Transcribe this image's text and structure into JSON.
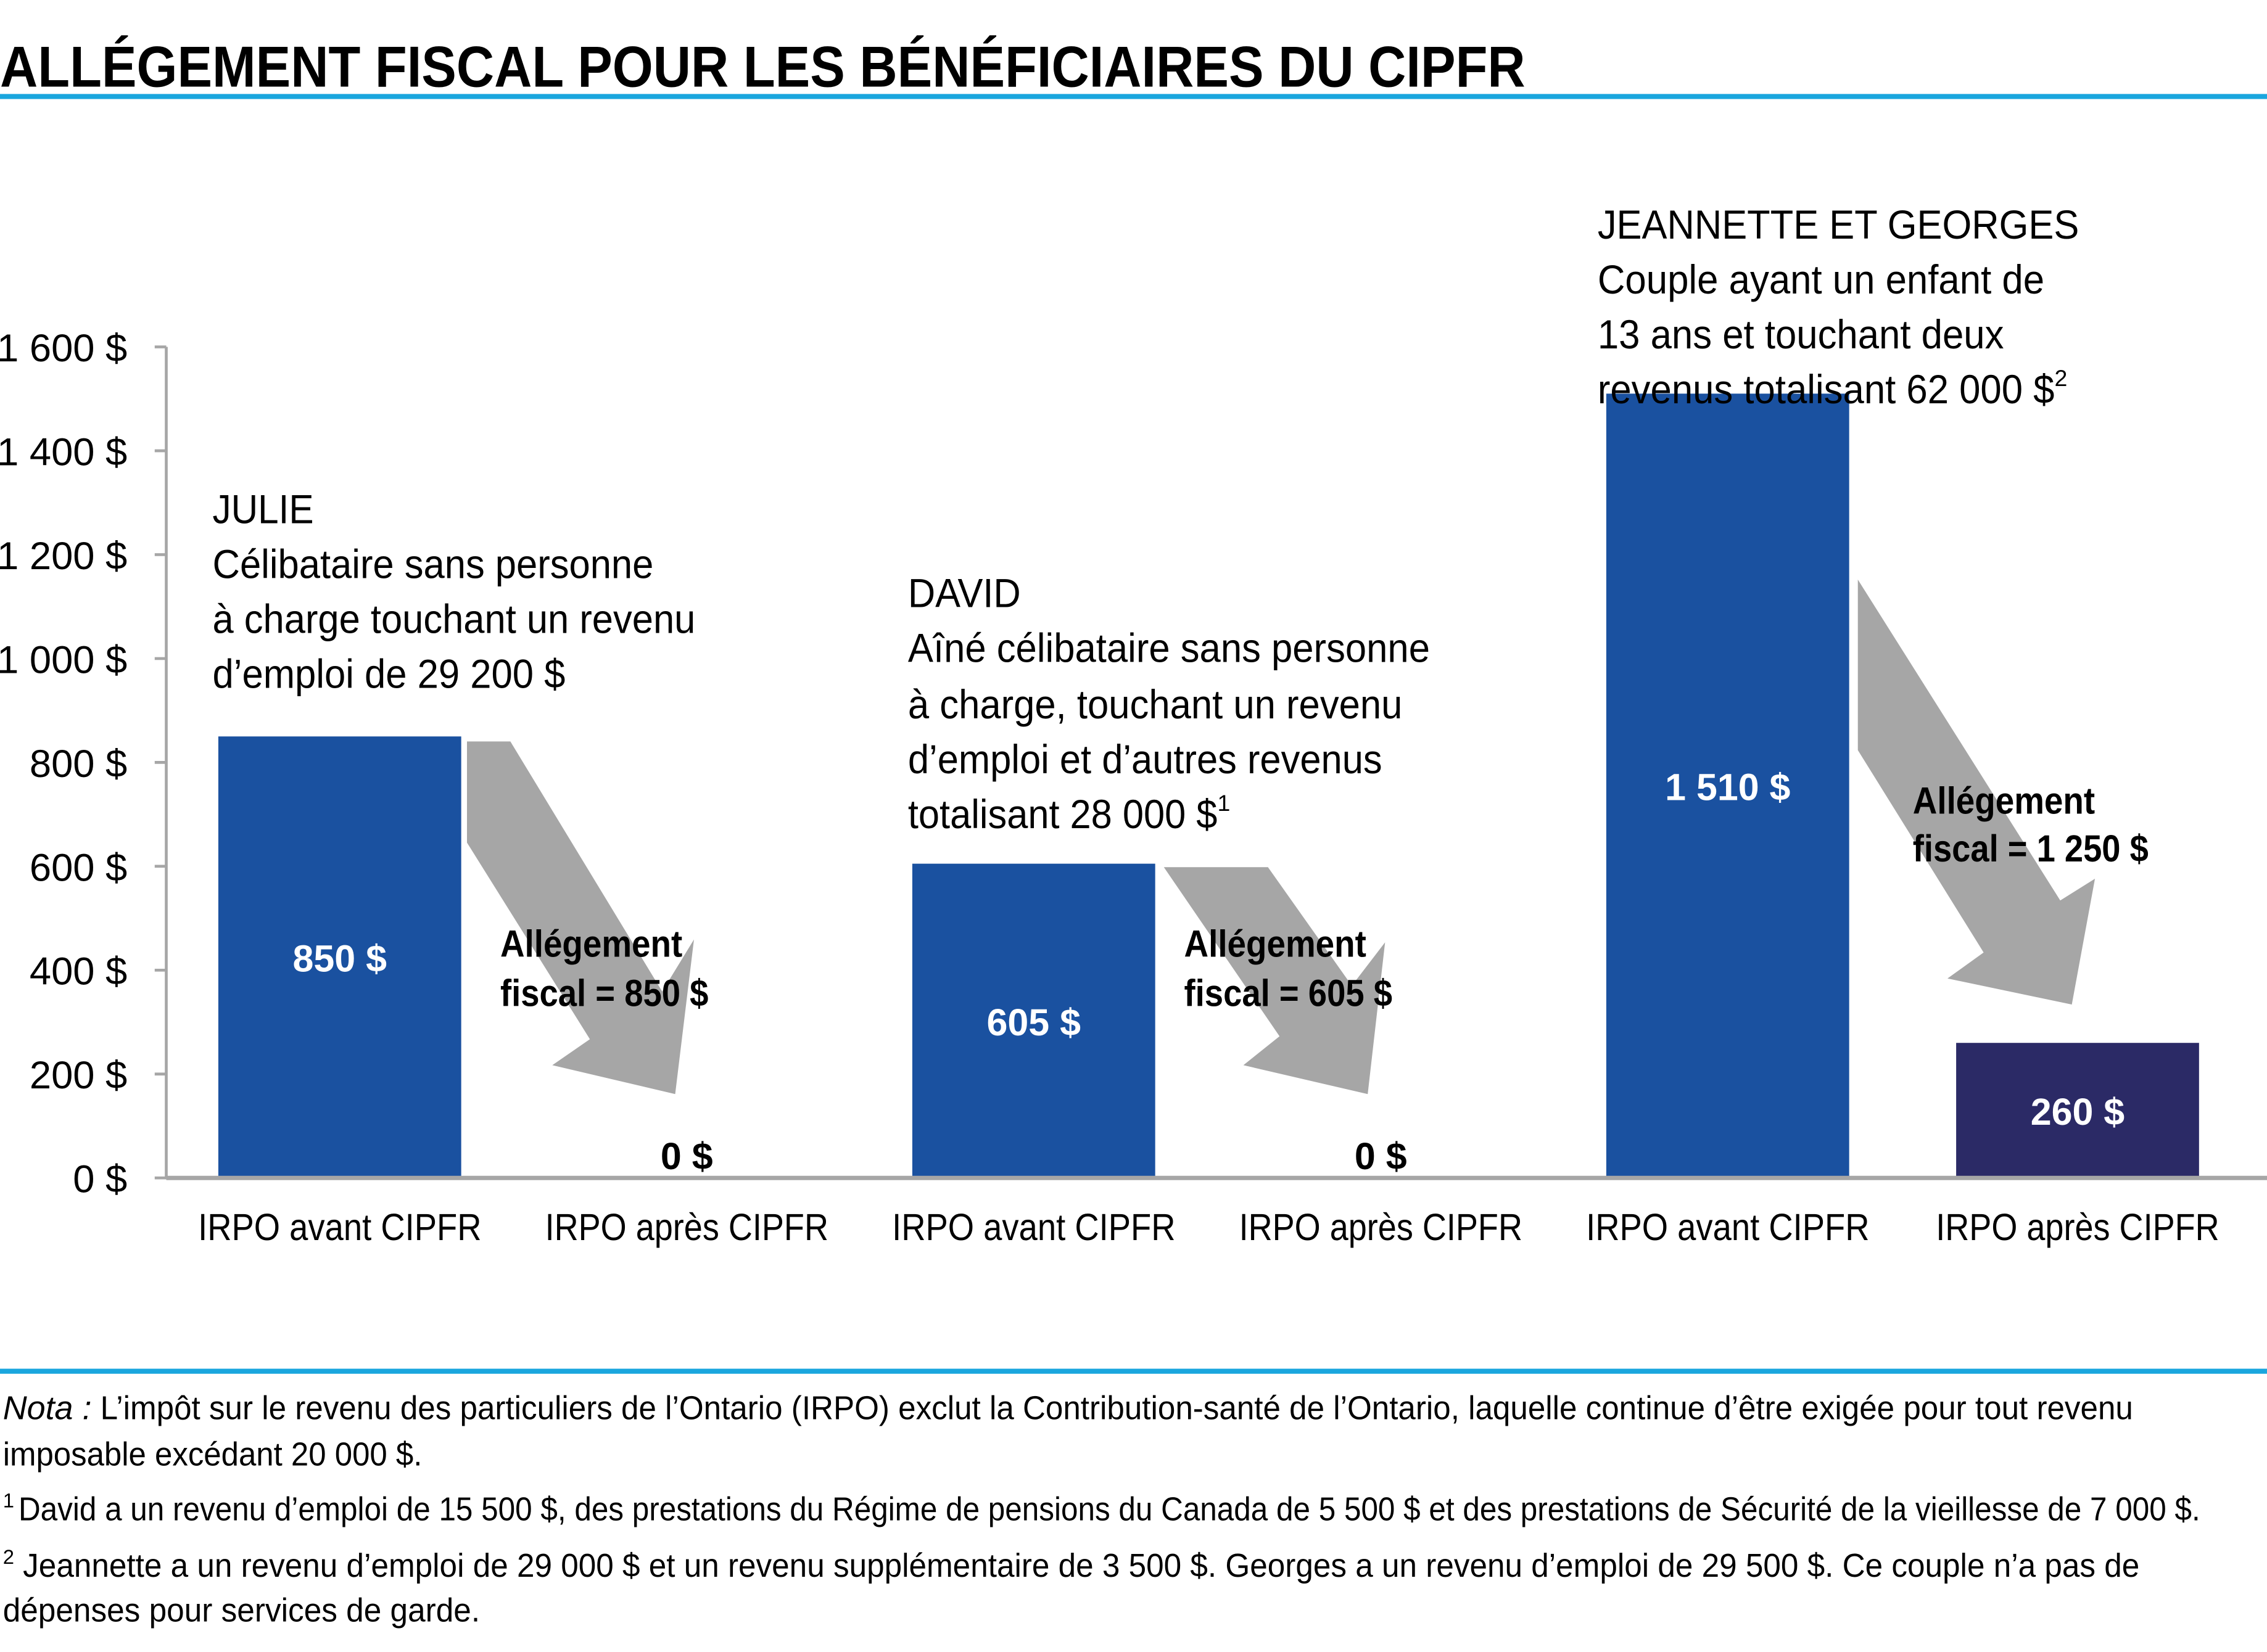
{
  "colors": {
    "before": "#1a51a0",
    "after": "#2b2a66",
    "arrow": "#a6a6a6",
    "rule": "#1aa6de",
    "axis": "#a6a6a6"
  },
  "chart_data": {
    "type": "bar",
    "title": "ALLÉGEMENT FISCAL POUR LES BÉNÉFICIAIRES DU CIPFR",
    "ylabel": "",
    "xlabel": "",
    "ylim": [
      0,
      1600
    ],
    "yticks": [
      0,
      200,
      400,
      600,
      800,
      1000,
      1200,
      1400,
      1600
    ],
    "ytick_labels": [
      "0 $",
      "200 $",
      "400 $",
      "600 $",
      "800 $",
      "1 000 $",
      "1 200 $",
      "1 400 $",
      "1 600 $"
    ],
    "categories": [
      "IRPO avant CIPFR",
      "IRPO après CIPFR",
      "IRPO avant CIPFR",
      "IRPO après CIPFR",
      "IRPO avant CIPFR",
      "IRPO après CIPFR"
    ],
    "values": [
      850,
      0,
      605,
      0,
      1510,
      260
    ],
    "value_labels": [
      "850 $",
      "0 $",
      "605 $",
      "0 $",
      "1 510 $",
      "260 $"
    ],
    "series_kind": [
      "before",
      "after",
      "before",
      "after",
      "before",
      "after"
    ],
    "grid": false,
    "groups": [
      {
        "name": "JULIE",
        "lines": [
          "Célibataire sans personne",
          "à charge touchant un revenu",
          "d’emploi de 29 200 $"
        ],
        "sup": "",
        "relief": [
          "Allégement",
          "fiscal = 850 $"
        ]
      },
      {
        "name": "DAVID",
        "lines": [
          "Aîné célibataire sans personne",
          "à charge, touchant un revenu",
          "d’emploi et d’autres revenus",
          "totalisant 28 000 $"
        ],
        "sup": "1",
        "relief": [
          "Allégement",
          "fiscal = 605 $"
        ]
      },
      {
        "name": "JEANNETTE ET GEORGES",
        "lines": [
          "Couple ayant un enfant de",
          "13 ans et touchant deux",
          "revenus totalisant 62 000 $"
        ],
        "sup": "2",
        "relief": [
          "Allégement",
          "fiscal = 1 250 $"
        ]
      }
    ]
  },
  "notes": {
    "nota_label": "Nota :",
    "nota_line1": " L’impôt sur le revenu des particuliers de l’Ontario (IRPO) exclut la Contribution-santé de l’Ontario, laquelle continue d’être exigée pour tout revenu",
    "nota_line2": "imposable excédant 20 000 $.",
    "fn1_mark": "1",
    "fn1": "David a un revenu d’emploi de 15 500 $, des prestations du Régime de pensions du Canada de 5 500 $ et des prestations de Sécurité de la vieillesse de 7 000 $.",
    "fn2_mark": "2",
    "fn2_line1": " Jeannette a un revenu d’emploi de 29 000 $ et un revenu supplémentaire de 3 500 $. Georges a un revenu d’emploi de 29 500 $. Ce couple n’a pas de",
    "fn2_line2": "dépenses pour services de garde."
  }
}
